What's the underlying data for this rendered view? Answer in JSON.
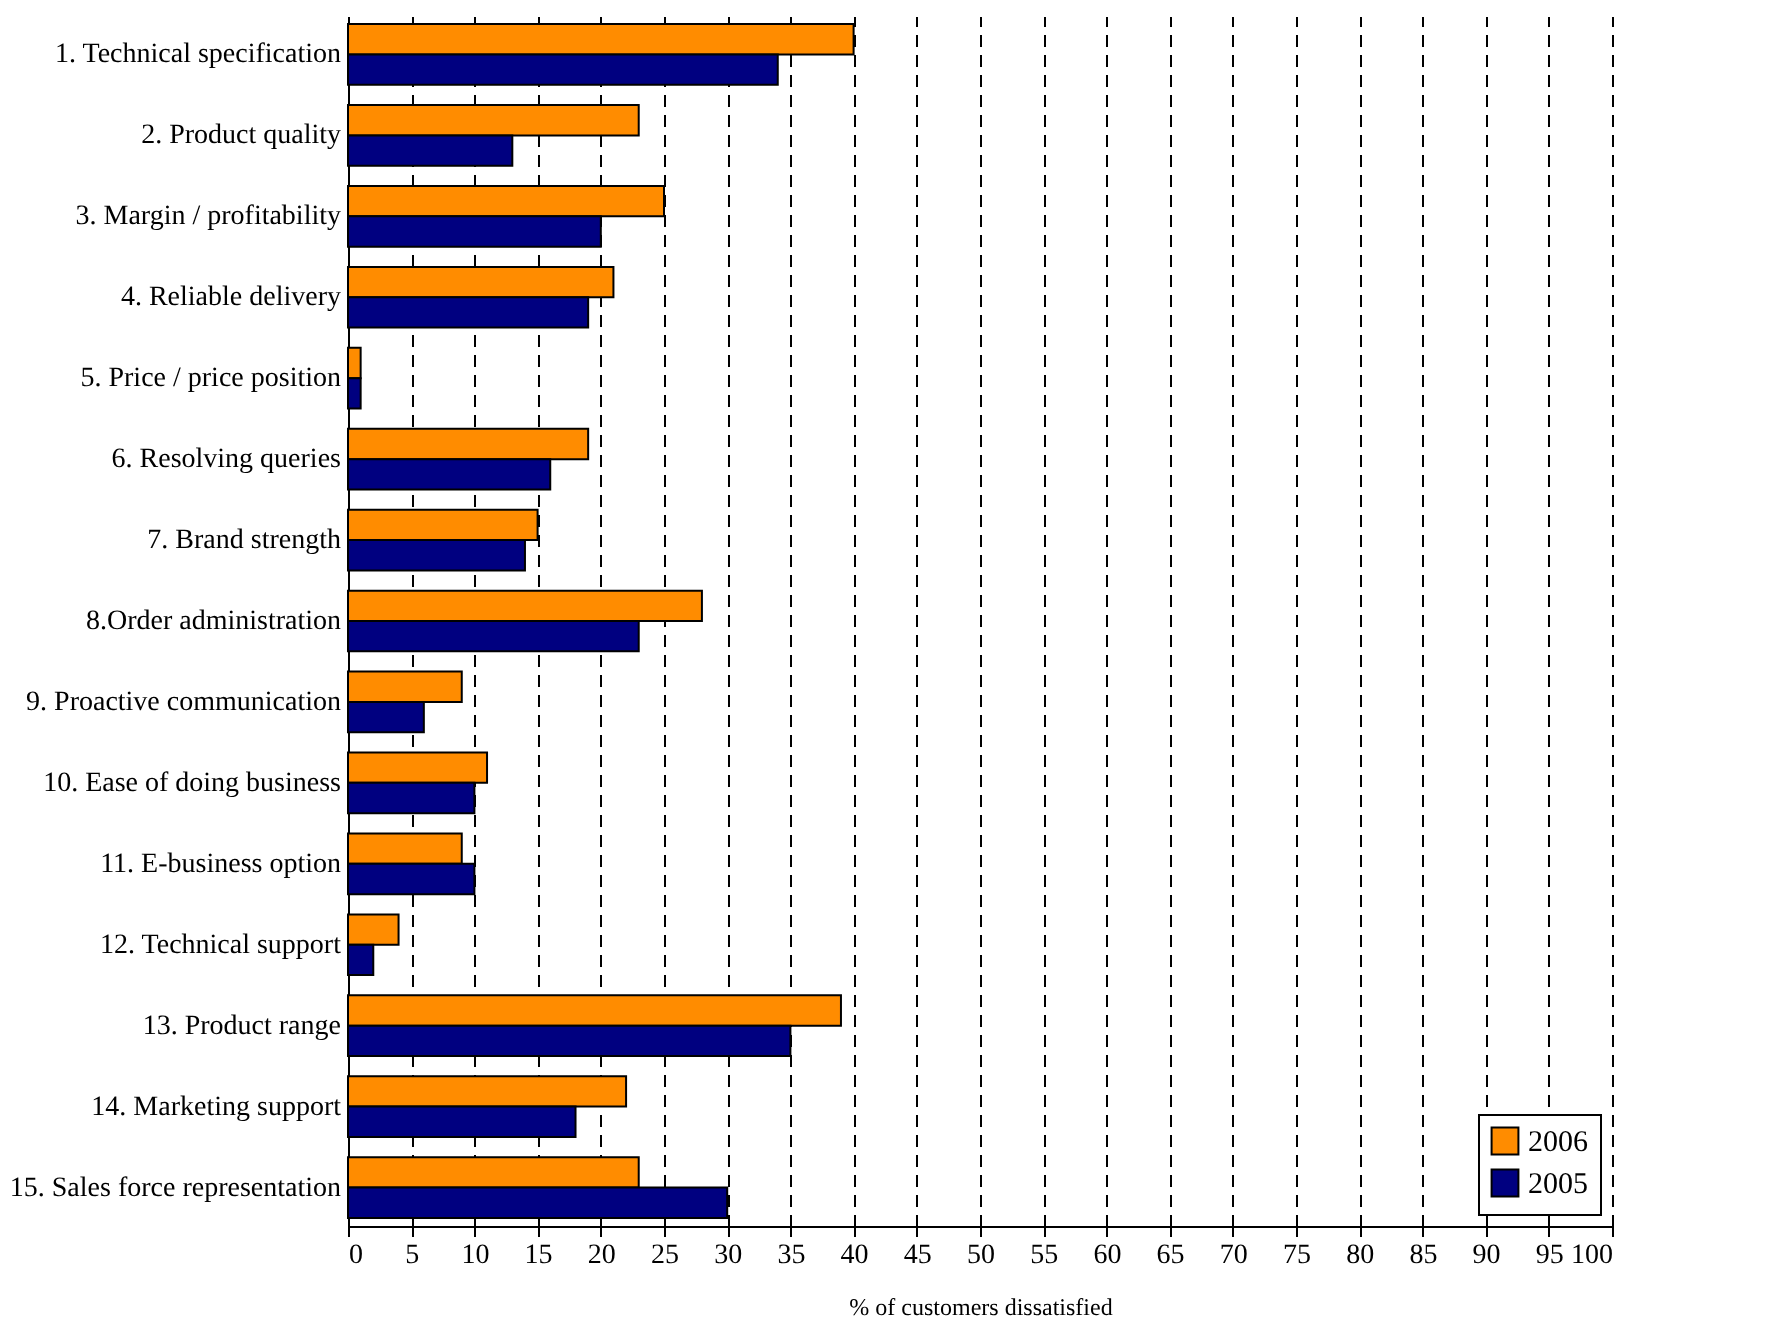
{
  "chart_data": {
    "type": "bar",
    "orientation": "horizontal",
    "xlabel": "% of customers dissatisfied",
    "categories": [
      "1. Technical specification",
      "2. Product quality",
      "3. Margin / profitability",
      "4. Reliable delivery",
      "5. Price / price position",
      "6. Resolving queries",
      "7. Brand strength",
      "8.Order administration",
      "9. Proactive communication",
      "10. Ease of doing business",
      "11. E-business option",
      "12. Technical support",
      "13. Product range",
      "14. Marketing support",
      "15. Sales force representation"
    ],
    "series": [
      {
        "name": "2006",
        "color": "#ff8c00",
        "values": [
          40,
          23,
          25,
          21,
          1,
          19,
          15,
          28,
          9,
          11,
          9,
          4,
          39,
          22,
          23
        ]
      },
      {
        "name": "2005",
        "color": "#000080",
        "values": [
          34,
          13,
          20,
          19,
          1,
          16,
          14,
          23,
          6,
          10,
          10,
          2,
          35,
          18,
          30
        ]
      }
    ],
    "xlim": [
      0,
      100
    ],
    "xticks": [
      0,
      5,
      10,
      15,
      20,
      25,
      30,
      35,
      40,
      45,
      50,
      55,
      60,
      65,
      70,
      75,
      80,
      85,
      90,
      95,
      100
    ],
    "grid": "x",
    "line_style": "dashed",
    "legend": "bottom right"
  }
}
